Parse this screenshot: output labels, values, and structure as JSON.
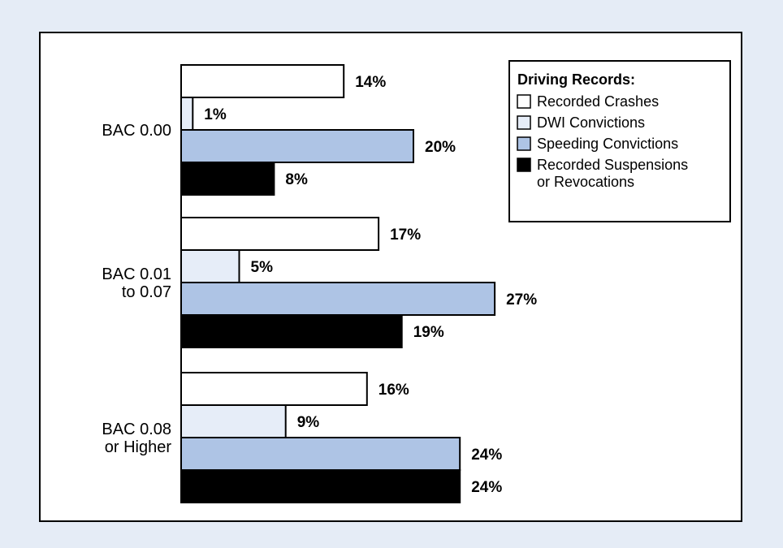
{
  "chart_data": {
    "type": "bar",
    "orientation": "horizontal",
    "unit": "%",
    "categories": [
      [
        "BAC 0.00"
      ],
      [
        "BAC 0.01",
        "to 0.07"
      ],
      [
        "BAC 0.08",
        "or Higher"
      ]
    ],
    "series": [
      {
        "name": "Recorded Crashes",
        "color": "#ffffff",
        "values": [
          14,
          17,
          16
        ]
      },
      {
        "name": "DWI Convictions",
        "color": "#e6edf8",
        "values": [
          1,
          5,
          9
        ]
      },
      {
        "name": "Speeding Convictions",
        "color": "#aec4e5",
        "values": [
          20,
          27,
          24
        ]
      },
      {
        "name": [
          "Recorded Suspensions",
          "or Revocations"
        ],
        "color": "#000000",
        "values": [
          8,
          19,
          24
        ]
      }
    ],
    "legend": {
      "title": "Driving Records:",
      "position": "top-right"
    },
    "grid": false,
    "xlim": [
      0,
      30
    ]
  }
}
